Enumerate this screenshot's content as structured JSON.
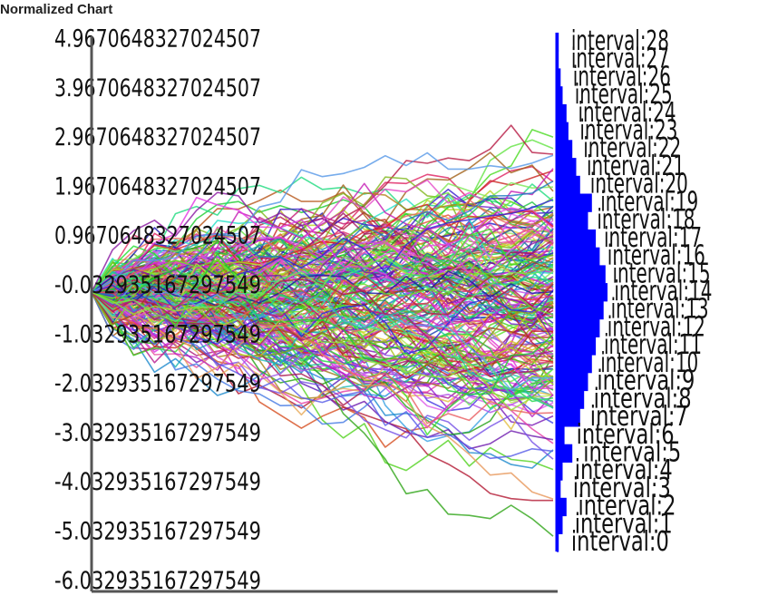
{
  "title": "Normalized Chart",
  "colors": {
    "axis": "#555555",
    "histogram": "#0000ff",
    "label": "#111111"
  },
  "chart_data": {
    "type": "line",
    "title": "Normalized Chart",
    "description_of_series": "many random-walk series starting at 0",
    "y_tick_labels": [
      "4.9670648327024507",
      "3.9670648327024507",
      "2.9670648327024507",
      "1.9670648327024507",
      "0.9670648327024507",
      "-0.032935167297549",
      "-1.032935167297549",
      "-2.032935167297549",
      "-3.032935167297549",
      "-4.032935167297549",
      "-5.032935167297549",
      "-6.032935167297549"
    ],
    "ylim": [
      -6.032935167297549,
      5.1
    ],
    "histogram": {
      "type": "bar",
      "orientation": "horizontal",
      "intervals": [
        "interval:0",
        "interval:1",
        "interval:2",
        "interval:3",
        "interval:4",
        "interval:5",
        "interval:6",
        "interval:7",
        "interval:8",
        "interval:9",
        "interval:10",
        "interval:11",
        "interval:12",
        "interval:13",
        "interval:14",
        "interval:15",
        "interval:16",
        "interval:17",
        "interval:18",
        "interval:19",
        "interval:20",
        "interval:21",
        "interval:22",
        "interval:23",
        "interval:24",
        "interval:25",
        "interval:26",
        "interval:27",
        "interval:28"
      ],
      "values": [
        1,
        3,
        5,
        2,
        3,
        8,
        4,
        12,
        14,
        16,
        18,
        20,
        22,
        24,
        26,
        25,
        22,
        20,
        16,
        18,
        12,
        10,
        8,
        6,
        5,
        3,
        2,
        1,
        1
      ]
    }
  }
}
